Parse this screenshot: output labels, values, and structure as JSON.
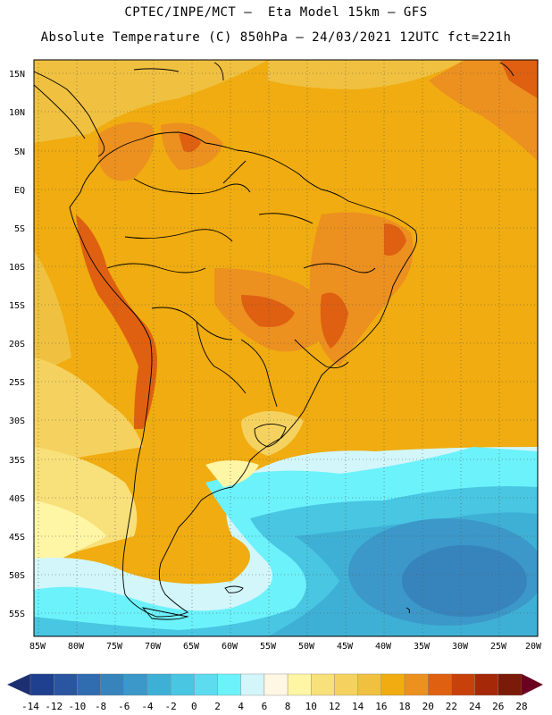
{
  "header": {
    "line1": "CPTEC/INPE/MCT –  Eta Model 15km – GFS",
    "line2": "Absolute Temperature (C) 850hPa – 24/03/2021 12UTC fct=221h"
  },
  "map": {
    "lat_labels": [
      "15N",
      "10N",
      "5N",
      "EQ",
      "5S",
      "10S",
      "15S",
      "20S",
      "25S",
      "30S",
      "35S",
      "40S",
      "45S",
      "50S",
      "55S"
    ],
    "lon_labels": [
      "85W",
      "80W",
      "75W",
      "70W",
      "65W",
      "60W",
      "55W",
      "50W",
      "45W",
      "40W",
      "35W",
      "30W",
      "25W",
      "20W"
    ],
    "grid": "dotted"
  },
  "colorbar": {
    "labels": [
      "-14",
      "-12",
      "-10",
      "-8",
      "-6",
      "-4",
      "-2",
      "0",
      "2",
      "4",
      "6",
      "8",
      "10",
      "12",
      "14",
      "16",
      "18",
      "20",
      "22",
      "24",
      "26",
      "28"
    ],
    "colors": [
      "#1f3f8f",
      "#2a55a0",
      "#2f6cb0",
      "#3784bd",
      "#3b98c8",
      "#3fb0d5",
      "#48c6e2",
      "#5cdcee",
      "#6cf2fb",
      "#d2f6fa",
      "#fff6e4",
      "#fef5a5",
      "#f8e07a",
      "#f5d25f",
      "#f0c140",
      "#f0ac10",
      "#ec9020",
      "#df6010",
      "#c8400a",
      "#a52808",
      "#7c1a0a"
    ],
    "left_arrow_color": "#1c2f70",
    "right_arrow_color": "#6c0020"
  }
}
